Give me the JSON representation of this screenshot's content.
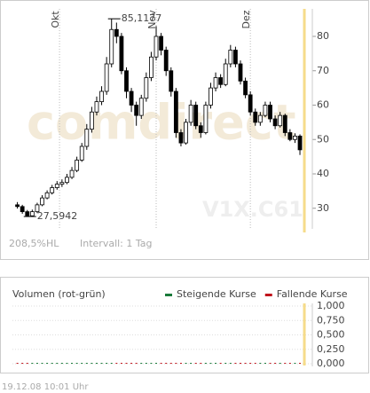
{
  "chart_data": {
    "type": "candlestick",
    "watermark": "comdirect",
    "symbol": "V1X.C61",
    "range_text": "208,5%HL",
    "interval_text": "Intervall: 1 Tag",
    "xlim": [
      -1,
      59.5
    ],
    "xticks": [
      {
        "value": 8.5,
        "label": "Okt"
      },
      {
        "value": 28,
        "label": "Nov"
      },
      {
        "value": 47,
        "label": "Dez"
      }
    ],
    "ylim": [
      24,
      88
    ],
    "yticks": [
      30,
      40,
      50,
      60,
      70,
      80
    ],
    "open": [
      31,
      30.5,
      29,
      27.8,
      29,
      31,
      33,
      34.5,
      36,
      37,
      37.5,
      39,
      41,
      44,
      48,
      53,
      58,
      61,
      64,
      72,
      82,
      80,
      70,
      64,
      60,
      57,
      62,
      68,
      74,
      80,
      76,
      70,
      64,
      52,
      49,
      55,
      60,
      54,
      52,
      60,
      65,
      68,
      66,
      72,
      76,
      72,
      67,
      63,
      58,
      55,
      57,
      60,
      56,
      54,
      57,
      52,
      50,
      51
    ],
    "high": [
      31.8,
      31,
      29.5,
      29.6,
      31.6,
      33.8,
      35.2,
      36.8,
      37.9,
      38.4,
      40,
      42,
      45,
      49,
      54.5,
      59.5,
      62.5,
      65.5,
      74,
      85.1177,
      84,
      81,
      71,
      65,
      61,
      63,
      69.5,
      75.5,
      83,
      81,
      77,
      71,
      65,
      53,
      56,
      61.5,
      61,
      55,
      61,
      66.5,
      69.5,
      69,
      73.5,
      77.5,
      77,
      73,
      68,
      64,
      59,
      58,
      61,
      61,
      57,
      58,
      57.5,
      53,
      51.8,
      51.5
    ],
    "low": [
      29.9,
      28.4,
      27.5942,
      27.7,
      28.6,
      30.6,
      32.6,
      34,
      35.4,
      36.2,
      37,
      38.5,
      40.5,
      43.5,
      47,
      52,
      57,
      60,
      63,
      71,
      78,
      69,
      62,
      58,
      54,
      56,
      61,
      67,
      73,
      74.5,
      68.5,
      62.5,
      50.5,
      48,
      48.5,
      54,
      53,
      50.5,
      51.5,
      59,
      64,
      65,
      65.5,
      71,
      71,
      66,
      62,
      57,
      54,
      54,
      56.5,
      55,
      53,
      53.5,
      51,
      49.5,
      49,
      45.5
    ],
    "close": [
      30.5,
      29,
      27.8,
      29,
      31,
      33,
      34.5,
      36,
      37,
      37.5,
      39,
      41,
      44,
      48,
      53,
      58,
      61,
      64,
      72,
      82,
      80,
      70,
      64,
      60,
      57,
      62,
      68,
      74,
      80,
      76,
      70,
      64,
      52,
      49,
      55,
      60,
      54,
      52,
      60,
      65,
      68,
      66,
      72,
      76,
      72,
      67,
      63,
      58,
      55,
      57,
      60,
      56,
      54,
      57,
      52,
      50,
      51,
      47
    ],
    "annotations": [
      {
        "x": 19,
        "y": 85.1177,
        "label": "85,1177"
      },
      {
        "x": 2,
        "y": 27.5942,
        "label": "27,5942"
      }
    ],
    "volume_panel": {
      "title": "Volumen (rot-grün)",
      "series": [
        {
          "name": "Steigende Kurse",
          "color": "#1a7a3a"
        },
        {
          "name": "Fallende Kurse",
          "color": "#c0141c"
        }
      ],
      "ylim": [
        0,
        1
      ],
      "yticks": [
        {
          "value": 0,
          "label": "0,000"
        },
        {
          "value": 0.25,
          "label": "0,250"
        },
        {
          "value": 0.5,
          "label": "0,500"
        },
        {
          "value": 0.75,
          "label": "0,750"
        },
        {
          "value": 1,
          "label": "1,000"
        }
      ],
      "values": [
        0,
        0,
        0,
        0,
        0,
        0,
        0,
        0,
        0,
        0,
        0,
        0,
        0,
        0,
        0,
        0,
        0,
        0,
        0,
        0,
        0,
        0,
        0,
        0,
        0,
        0,
        0,
        0,
        0,
        0,
        0,
        0,
        0,
        0,
        0,
        0,
        0,
        0,
        0,
        0,
        0,
        0,
        0,
        0,
        0,
        0,
        0,
        0,
        0,
        0,
        0,
        0,
        0,
        0,
        0,
        0,
        0,
        0
      ]
    },
    "footer": "19.12.08   10:01 Uhr"
  }
}
